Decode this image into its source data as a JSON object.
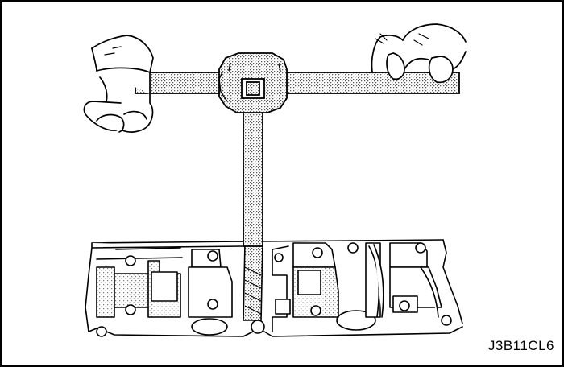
{
  "figure": {
    "code": "J3B11CL6",
    "colors": {
      "ink": "#000000",
      "paper": "#ffffff",
      "stipple": "#7a7a7a"
    }
  }
}
